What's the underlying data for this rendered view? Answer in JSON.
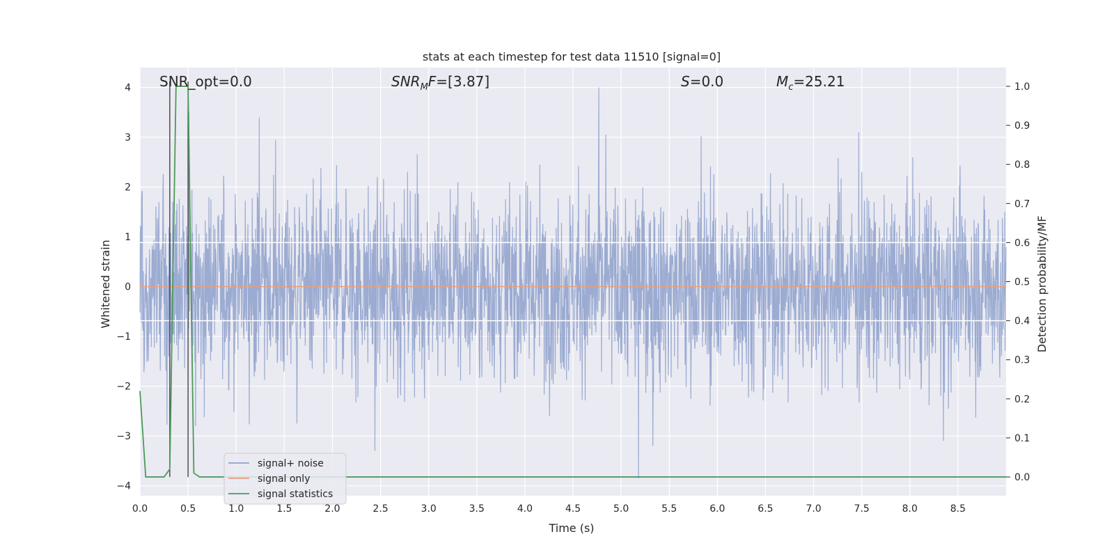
{
  "chart_data": {
    "type": "line",
    "title": "stats at each timestep for test data 11510 [signal=0]",
    "xlabel": "Time (s)",
    "ylabel": "Whitened strain",
    "y2label": "Detection probability/MF",
    "xlim": [
      0,
      9.0
    ],
    "ylim": [
      -4.2,
      4.4
    ],
    "y2lim": [
      -0.048,
      1.048
    ],
    "xticks": [
      "0.0",
      "0.5",
      "1.0",
      "1.5",
      "2.0",
      "2.5",
      "3.0",
      "3.5",
      "4.0",
      "4.5",
      "5.0",
      "5.5",
      "6.0",
      "6.5",
      "7.0",
      "7.5",
      "8.0",
      "8.5"
    ],
    "yticks": [
      "-4",
      "-3",
      "-2",
      "-1",
      "0",
      "1",
      "2",
      "3",
      "4"
    ],
    "y2ticks": [
      "0.0",
      "0.1",
      "0.2",
      "0.3",
      "0.4",
      "0.5",
      "0.6",
      "0.7",
      "0.8",
      "0.9",
      "1.0"
    ],
    "grid": true,
    "legend_position": "lower-left",
    "annotations": [
      {
        "id": "snr-opt",
        "text": "SNR_opt=0.0"
      },
      {
        "id": "snr-mf",
        "text": "SNR_MF=[3.87]",
        "prefix": "SNR",
        "sub": "M",
        "suffix": "F=[3.87]"
      },
      {
        "id": "s",
        "text": "S=0.0",
        "prefix": "S",
        "sub": "",
        "suffix": "=0.0"
      },
      {
        "id": "mc",
        "text": "M_c=25.21",
        "prefix": "M",
        "sub": "c",
        "suffix": "=25.21"
      }
    ],
    "vertical_lines_x": [
      0.31,
      0.5
    ],
    "series": [
      {
        "name": "signal+ noise",
        "color": "#8da0cb",
        "axis": "left",
        "description_type": "dense noise trace",
        "envelope_peaks": [
          {
            "x": 0.51,
            "y": 3.5
          },
          {
            "x": 1.24,
            "y": 3.4
          },
          {
            "x": 1.41,
            "y": 2.95
          },
          {
            "x": 4.77,
            "y": 4.0
          },
          {
            "x": 4.84,
            "y": 3.05
          },
          {
            "x": 5.83,
            "y": 3.02
          },
          {
            "x": 7.47,
            "y": 3.1
          },
          {
            "x": 2.44,
            "y": -3.3
          },
          {
            "x": 5.18,
            "y": -3.85
          },
          {
            "x": 5.33,
            "y": -3.2
          },
          {
            "x": 8.35,
            "y": -3.1
          },
          {
            "x": 0.58,
            "y": -2.8
          },
          {
            "x": 1.63,
            "y": -2.75
          }
        ]
      },
      {
        "name": "signal only",
        "color": "#e8a07a",
        "axis": "left",
        "x": [
          0,
          9.0
        ],
        "y": [
          0,
          0
        ]
      },
      {
        "name": "signal statistics",
        "color": "#4c9a5a",
        "axis": "right",
        "x": [
          0.0,
          0.06,
          0.13,
          0.19,
          0.25,
          0.31,
          0.375,
          0.44,
          0.5,
          0.56,
          0.62,
          0.68,
          9.0
        ],
        "y": [
          0.22,
          0.0,
          0.0,
          0.0,
          0.0,
          0.02,
          1.0,
          1.0,
          1.0,
          0.01,
          0.0,
          0.0,
          0.0
        ]
      }
    ]
  }
}
